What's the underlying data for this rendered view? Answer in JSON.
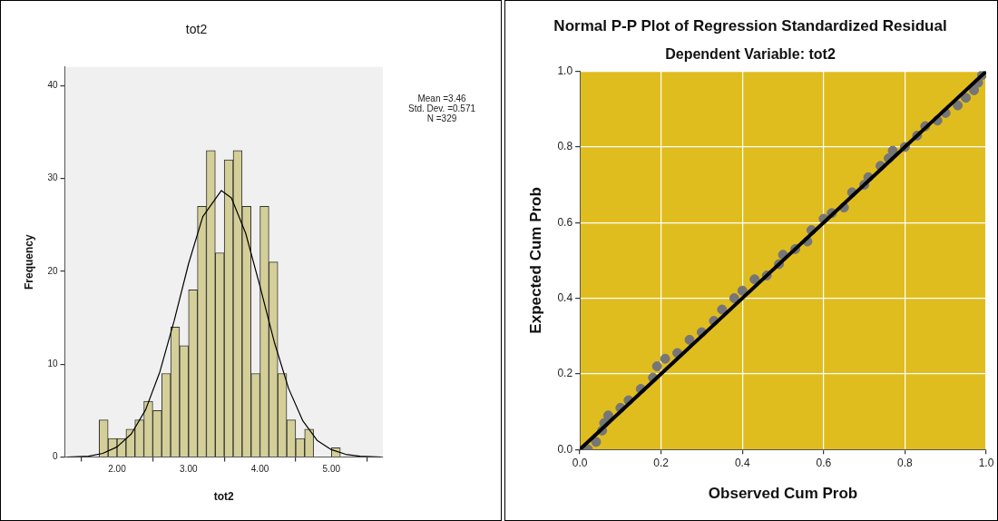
{
  "chart_data": [
    {
      "type": "histogram",
      "title": "tot2",
      "xlabel": "tot2",
      "ylabel": "Frequency",
      "bins": [
        1.75,
        1.875,
        2.0,
        2.125,
        2.25,
        2.375,
        2.5,
        2.625,
        2.75,
        2.875,
        3.0,
        3.125,
        3.25,
        3.375,
        3.5,
        3.625,
        3.75,
        3.875,
        4.0,
        4.125,
        4.25,
        4.375,
        4.5,
        4.625,
        4.75,
        4.875,
        5.0,
        5.125
      ],
      "series": [
        {
          "color": "#d4cf98",
          "values": [
            4,
            2,
            2,
            3,
            4,
            6,
            5,
            9,
            14,
            12,
            18,
            27,
            33,
            22,
            32,
            33,
            27,
            9,
            27,
            21,
            9,
            4,
            2,
            3,
            0,
            0,
            1
          ]
        },
        {
          "type": "line",
          "color": "#000000",
          "x": [
            1.3,
            1.6,
            1.8,
            2.0,
            2.2,
            2.4,
            2.6,
            2.8,
            3.0,
            3.2,
            3.46,
            3.6,
            3.8,
            4.0,
            4.2,
            4.4,
            4.6,
            4.8,
            5.0,
            5.2,
            5.4,
            5.7
          ],
          "values": [
            0.0,
            0.1,
            0.4,
            1.1,
            2.5,
            5.1,
            9.2,
            14.7,
            20.8,
            25.9,
            28.7,
            27.9,
            24.1,
            18.4,
            12.4,
            7.4,
            3.9,
            1.8,
            0.8,
            0.3,
            0.1,
            0.0
          ]
        }
      ],
      "xlim": [
        1.27,
        5.72
      ],
      "ylim": [
        0,
        42
      ],
      "xticks": [
        {
          "value": 2,
          "label": "2.00"
        },
        {
          "value": 3,
          "label": "3.00"
        },
        {
          "value": 4,
          "label": "4.00"
        },
        {
          "value": 5,
          "label": "5.00"
        }
      ],
      "yticks": [
        0,
        10,
        20,
        30,
        40
      ],
      "annotations": [
        "Mean =3.46",
        "Std. Dev. =0.571",
        "N =329"
      ]
    },
    {
      "type": "scatter",
      "title": "Normal P-P Plot of Regression Standardized Residual",
      "subtitle": "Dependent Variable: tot2",
      "xlabel": "Observed Cum Prob",
      "ylabel": "Expected Cum Prob",
      "series": [
        {
          "color": "#767676",
          "marker": "circle",
          "x": [
            0.02,
            0.04,
            0.055,
            0.06,
            0.07,
            0.1,
            0.12,
            0.15,
            0.18,
            0.19,
            0.21,
            0.24,
            0.27,
            0.3,
            0.33,
            0.35,
            0.38,
            0.4,
            0.43,
            0.46,
            0.49,
            0.5,
            0.53,
            0.56,
            0.57,
            0.6,
            0.62,
            0.65,
            0.67,
            0.7,
            0.71,
            0.74,
            0.76,
            0.77,
            0.8,
            0.83,
            0.85,
            0.88,
            0.9,
            0.93,
            0.95,
            0.97,
            0.98,
            0.99
          ],
          "values": [
            0.0,
            0.02,
            0.05,
            0.07,
            0.09,
            0.11,
            0.13,
            0.16,
            0.19,
            0.22,
            0.24,
            0.255,
            0.29,
            0.31,
            0.34,
            0.37,
            0.4,
            0.42,
            0.45,
            0.46,
            0.49,
            0.515,
            0.53,
            0.55,
            0.58,
            0.61,
            0.625,
            0.64,
            0.68,
            0.7,
            0.72,
            0.75,
            0.77,
            0.79,
            0.8,
            0.83,
            0.855,
            0.87,
            0.89,
            0.91,
            0.93,
            0.95,
            0.97,
            0.99
          ]
        },
        {
          "type": "line",
          "color": "#000000",
          "x": [
            0,
            1
          ],
          "values": [
            0,
            1
          ]
        }
      ],
      "xlim": [
        0,
        1
      ],
      "ylim": [
        0,
        1
      ],
      "xticks": [
        {
          "value": 0,
          "label": "0.0"
        },
        {
          "value": 0.2,
          "label": "0.2"
        },
        {
          "value": 0.4,
          "label": "0.4"
        },
        {
          "value": 0.6,
          "label": "0.6"
        },
        {
          "value": 0.8,
          "label": "0.8"
        },
        {
          "value": 1,
          "label": "1.0"
        }
      ],
      "yticks": [
        {
          "value": 0,
          "label": "0.0"
        },
        {
          "value": 0.2,
          "label": "0.2"
        },
        {
          "value": 0.4,
          "label": "0.4"
        },
        {
          "value": 0.6,
          "label": "0.6"
        },
        {
          "value": 0.8,
          "label": "0.8"
        },
        {
          "value": 1,
          "label": "1.0"
        }
      ],
      "grid": true
    }
  ]
}
